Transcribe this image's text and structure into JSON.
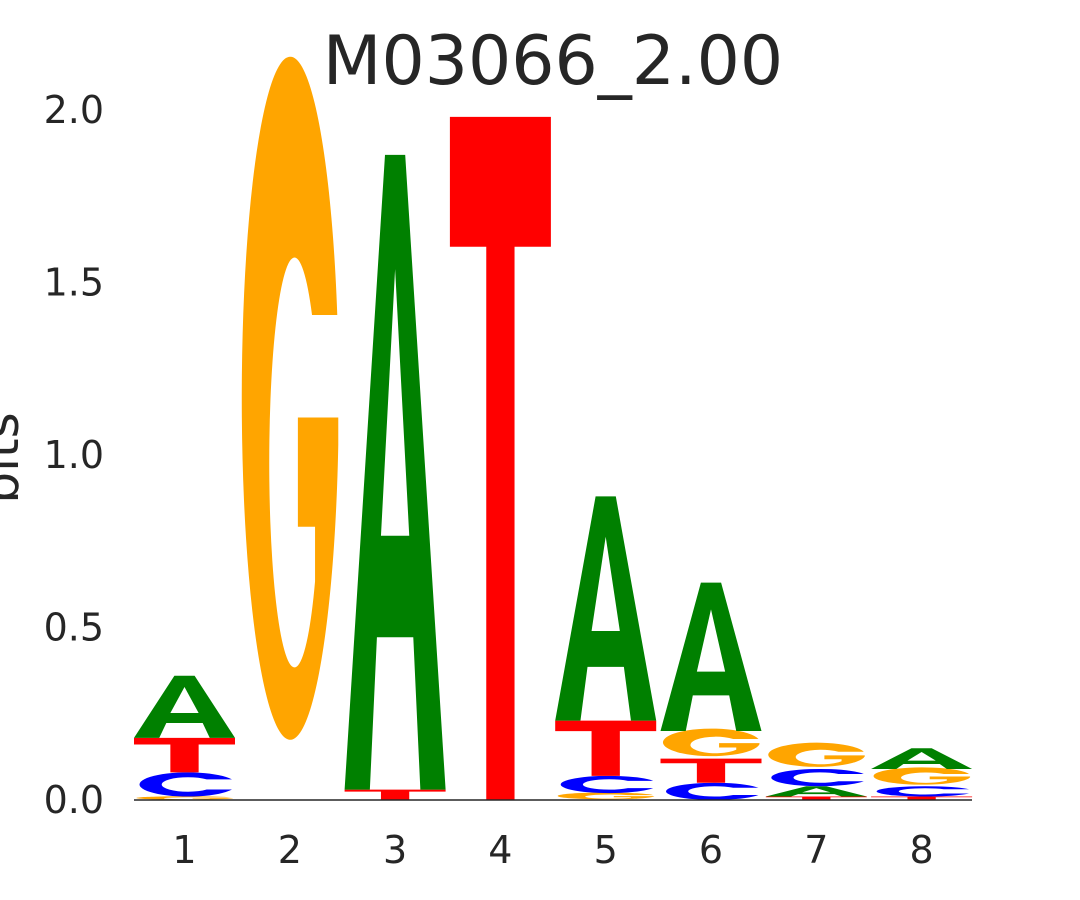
{
  "chart_data": {
    "type": "sequence-logo",
    "title": "M03066_2.00",
    "ylabel": "bits",
    "xlabel": "",
    "ylim": [
      0,
      2.0
    ],
    "yticks": [
      "0.0",
      "0.5",
      "1.0",
      "1.5",
      "2.0"
    ],
    "ytick_values": [
      0,
      0.5,
      1.0,
      1.5,
      2.0
    ],
    "positions": [
      "1",
      "2",
      "3",
      "4",
      "5",
      "6",
      "7",
      "8"
    ],
    "letter_colors": {
      "A": "#008000",
      "C": "#0000ff",
      "G": "#ffa500",
      "T": "#ff0000"
    },
    "stacks": [
      [
        {
          "base": "G",
          "bits": 0.01
        },
        {
          "base": "C",
          "bits": 0.07
        },
        {
          "base": "T",
          "bits": 0.1
        },
        {
          "base": "A",
          "bits": 0.18
        }
      ],
      [
        {
          "base": "G",
          "bits": 1.98
        }
      ],
      [
        {
          "base": "T",
          "bits": 0.03
        },
        {
          "base": "A",
          "bits": 1.84
        }
      ],
      [
        {
          "base": "T",
          "bits": 1.98
        }
      ],
      [
        {
          "base": "G",
          "bits": 0.02
        },
        {
          "base": "C",
          "bits": 0.05
        },
        {
          "base": "T",
          "bits": 0.16
        },
        {
          "base": "A",
          "bits": 0.65
        }
      ],
      [
        {
          "base": "C",
          "bits": 0.05
        },
        {
          "base": "T",
          "bits": 0.07
        },
        {
          "base": "G",
          "bits": 0.08
        },
        {
          "base": "A",
          "bits": 0.43
        }
      ],
      [
        {
          "base": "T",
          "bits": 0.01
        },
        {
          "base": "A",
          "bits": 0.03
        },
        {
          "base": "C",
          "bits": 0.05
        },
        {
          "base": "G",
          "bits": 0.07
        }
      ],
      [
        {
          "base": "T",
          "bits": 0.01
        },
        {
          "base": "C",
          "bits": 0.03
        },
        {
          "base": "G",
          "bits": 0.05
        },
        {
          "base": "A",
          "bits": 0.06
        }
      ]
    ]
  }
}
